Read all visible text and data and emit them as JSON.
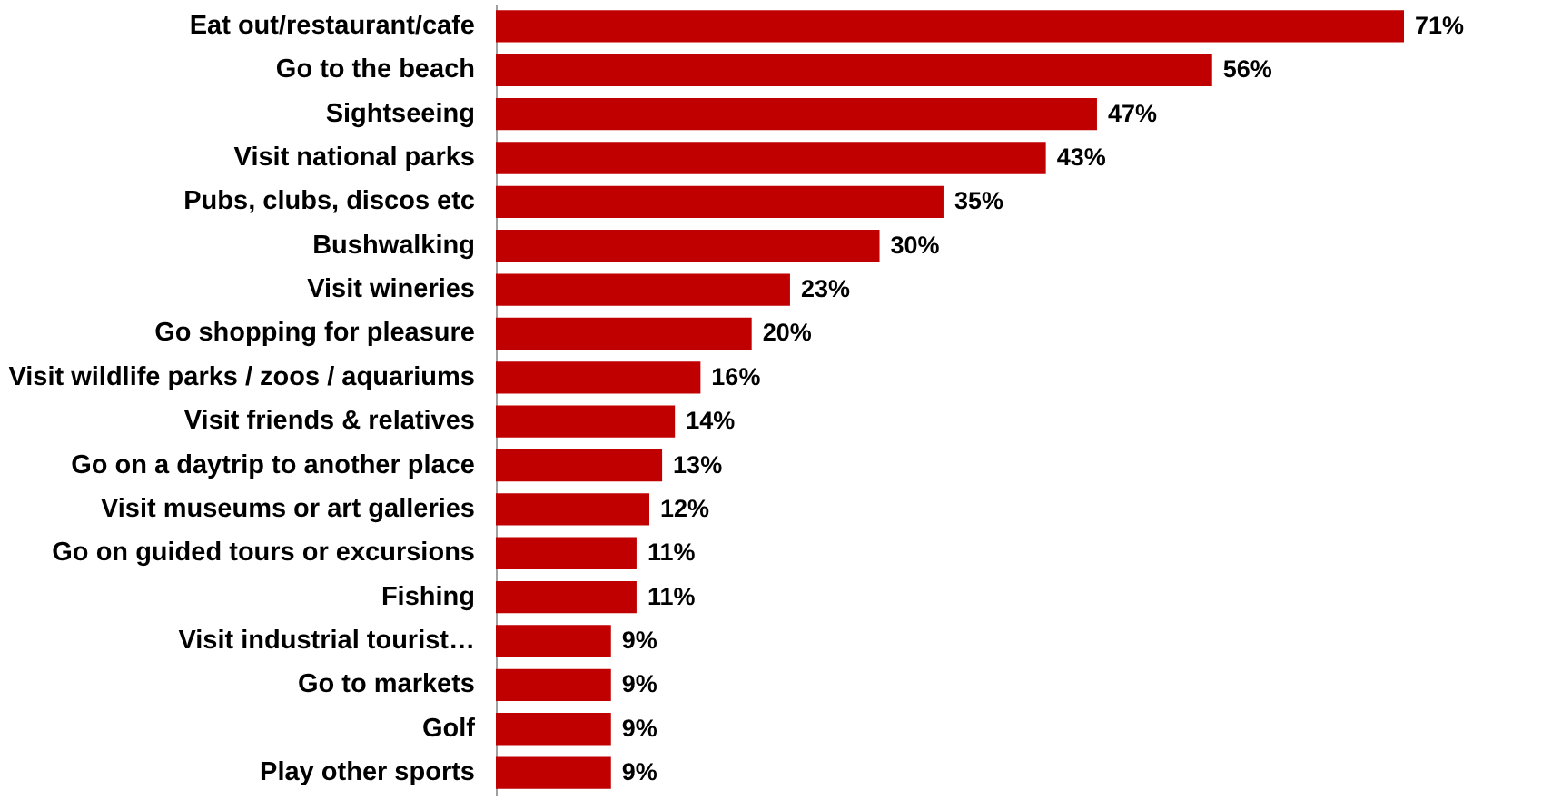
{
  "chart_data": {
    "type": "bar",
    "orientation": "horizontal",
    "categories": [
      "Eat out/restaurant/cafe",
      "Go to the beach",
      "Sightseeing",
      "Visit national parks",
      "Pubs, clubs, discos etc",
      "Bushwalking",
      "Visit wineries",
      "Go shopping for pleasure",
      "Visit wildlife parks / zoos / aquariums",
      "Visit friends & relatives",
      "Go on a daytrip to another place",
      "Visit museums or art galleries",
      "Go on guided tours or excursions",
      "Fishing",
      "Visit industrial tourist…",
      "Go to markets",
      "Golf",
      "Play other sports"
    ],
    "values": [
      71,
      56,
      47,
      43,
      35,
      30,
      23,
      20,
      16,
      14,
      13,
      12,
      11,
      11,
      9,
      9,
      9,
      9
    ],
    "value_labels": [
      "71%",
      "56%",
      "47%",
      "43%",
      "35%",
      "30%",
      "23%",
      "20%",
      "16%",
      "14%",
      "13%",
      "12%",
      "11%",
      "11%",
      "9%",
      "9%",
      "9%",
      "9%"
    ],
    "color": "#c00000"
  }
}
